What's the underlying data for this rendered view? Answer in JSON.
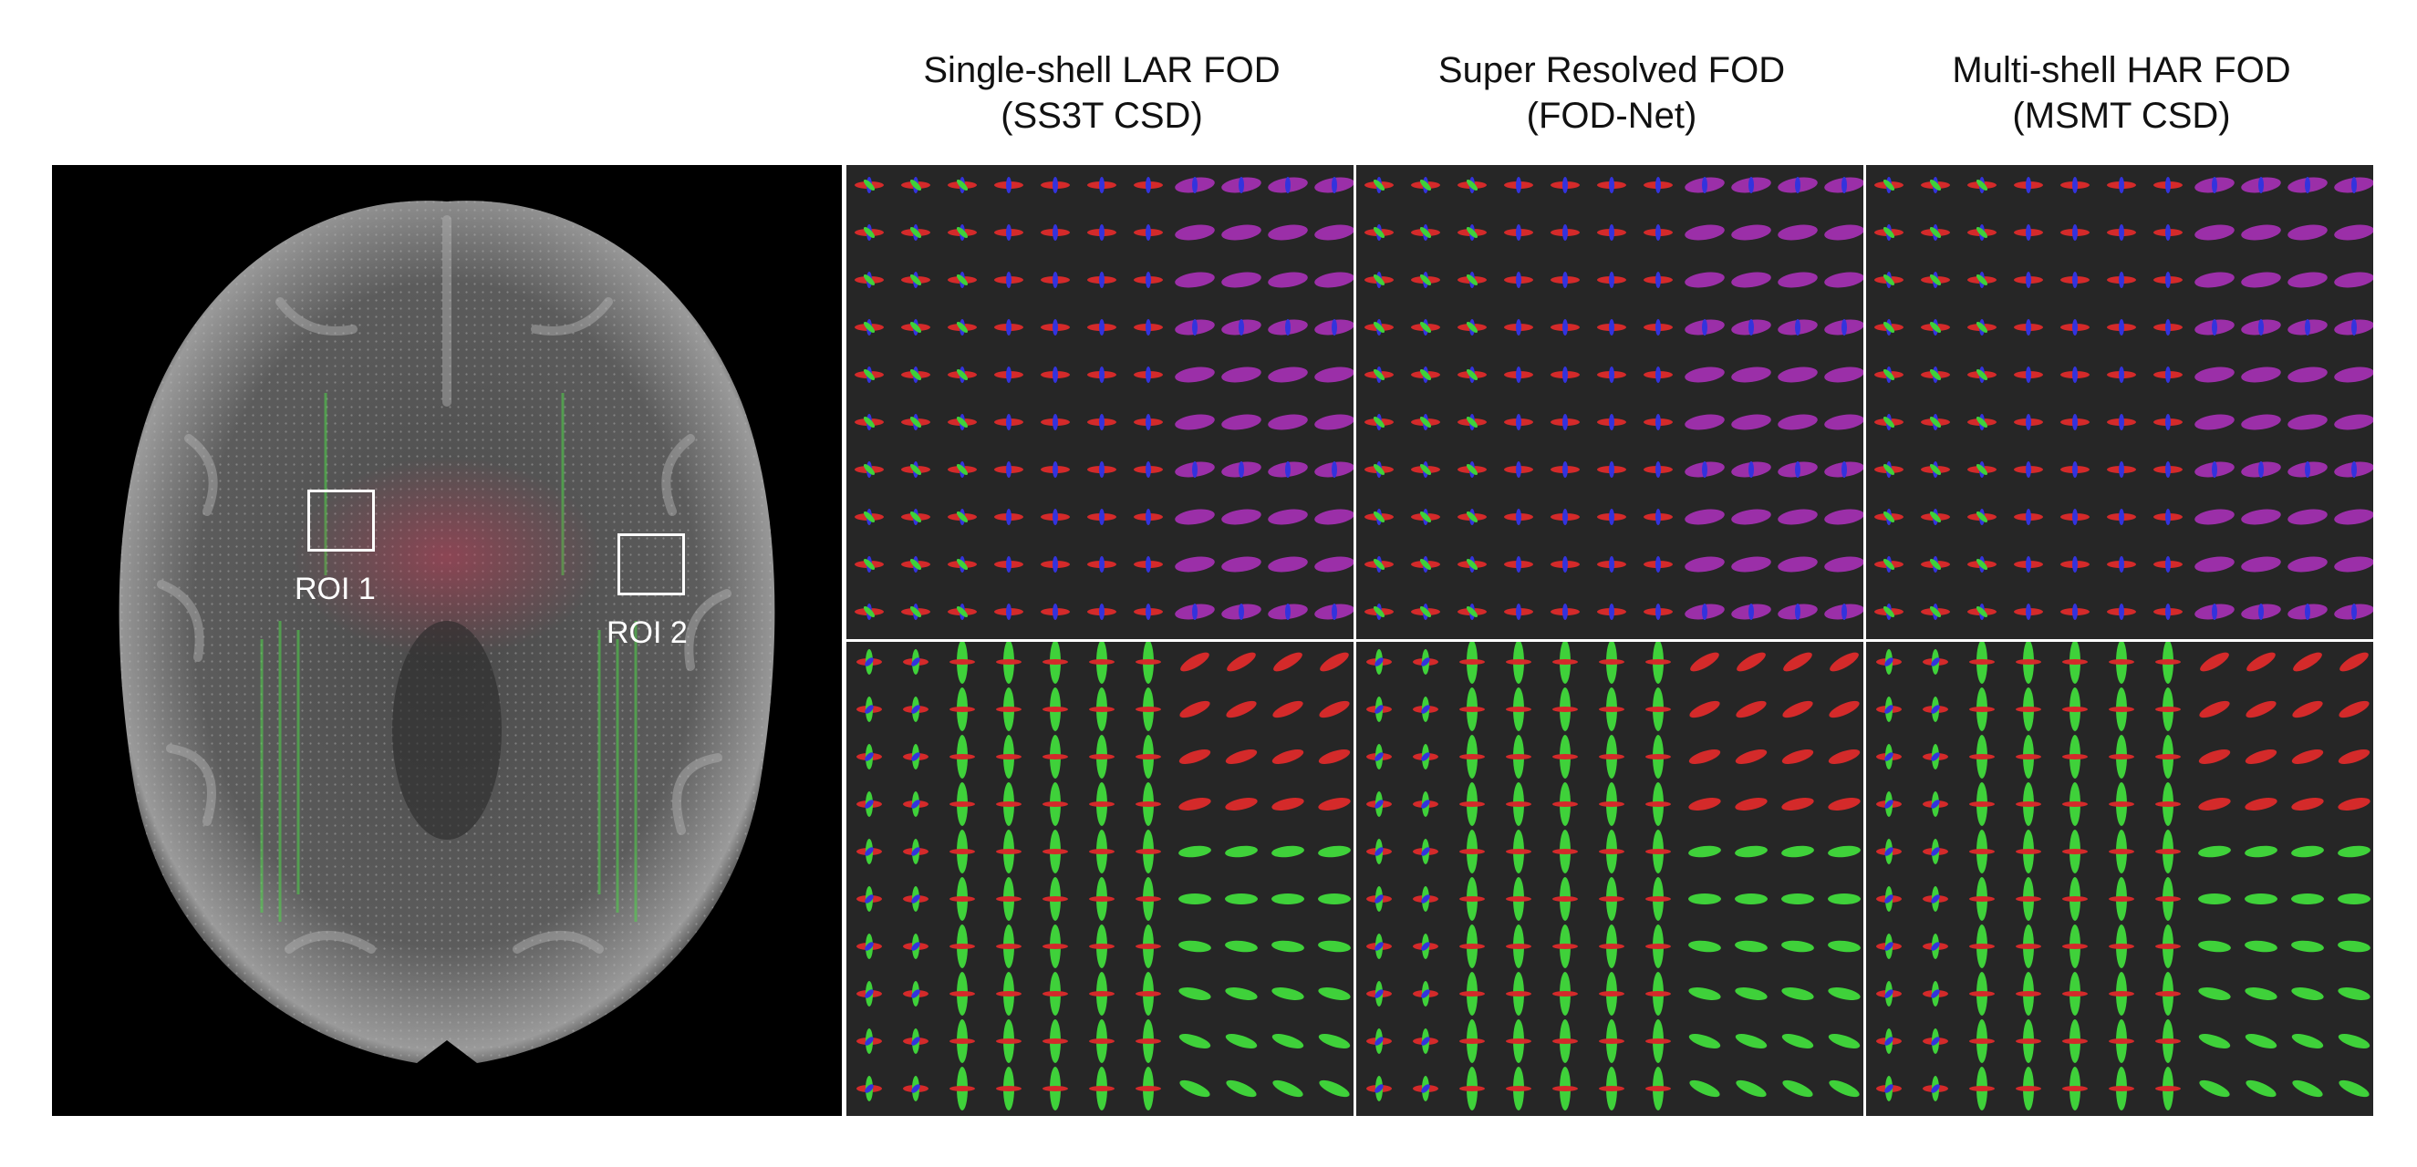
{
  "columns": [
    {
      "title_line1": "Single-shell LAR FOD",
      "title_line2": "(SS3T CSD)"
    },
    {
      "title_line1": "Super Resolved FOD",
      "title_line2": "(FOD-Net)"
    },
    {
      "title_line1": "Multi-shell HAR FOD",
      "title_line2": "(MSMT CSD)"
    }
  ],
  "rois": [
    {
      "label": "ROI 1"
    },
    {
      "label": "ROI 2"
    }
  ],
  "colors": {
    "background": "#ffffff",
    "panel_background": "#262626",
    "brain_background": "#000000",
    "fod_red": "#d42a2a",
    "fod_green": "#3fd13a",
    "fod_blue": "#3333dd",
    "fod_magenta": "#9b2fa8",
    "roi_box": "#ffffff"
  }
}
